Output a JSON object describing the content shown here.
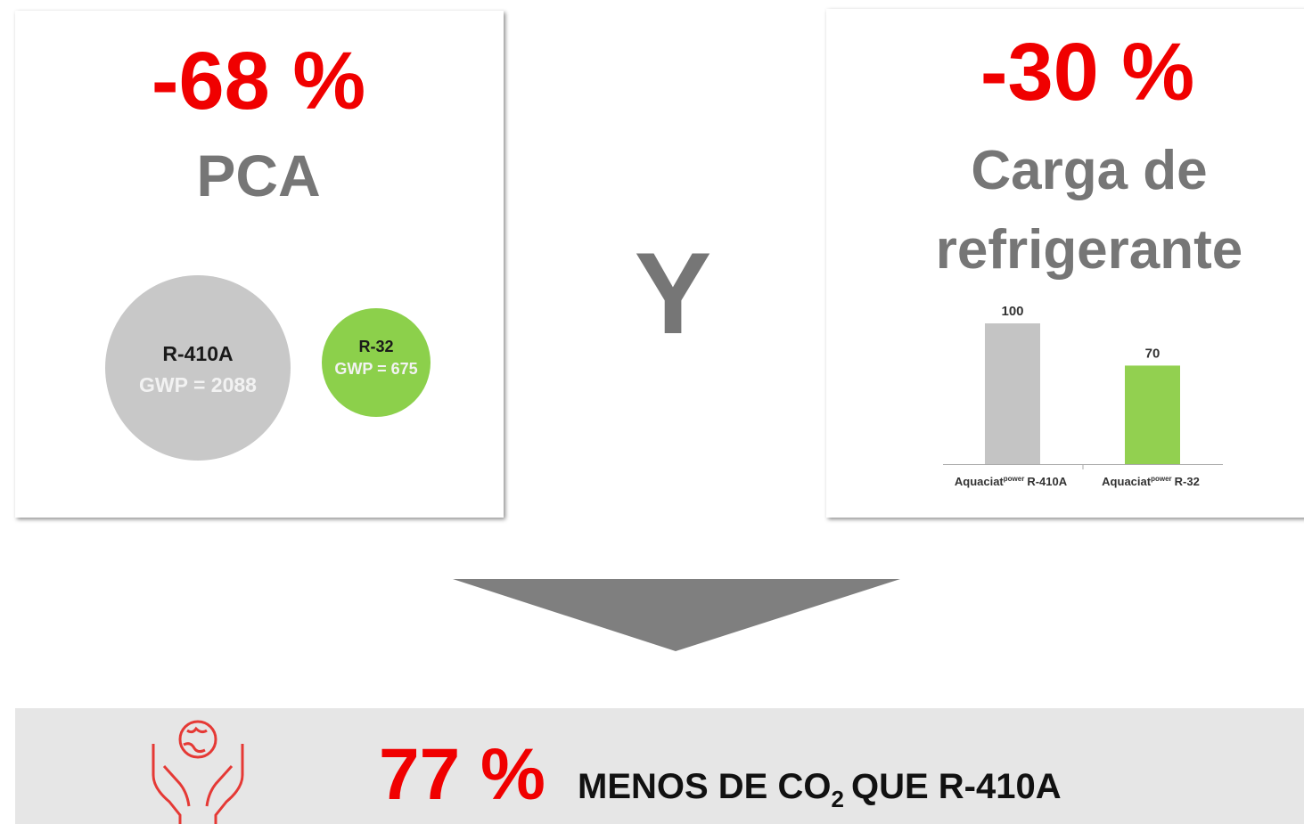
{
  "left_panel": {
    "percent": "-68 %",
    "title": "PCA",
    "circles": [
      {
        "name": "R-410A",
        "label": "GWP = 2088"
      },
      {
        "name": "R-32",
        "label": "GWP = 675"
      }
    ]
  },
  "connector": "Y",
  "right_panel": {
    "percent": "-30 %",
    "title_line1": "Carga de",
    "title_line2": "refrigerante",
    "bar_chart": {
      "categories": [
        [
          "Aquaciat",
          "power",
          "R-410A"
        ],
        [
          "Aquaciat",
          "power",
          "R-32"
        ]
      ],
      "values": [
        100,
        70
      ],
      "colors": [
        "#c4c4c4",
        "#92d050"
      ]
    }
  },
  "result": {
    "percent": "77 %",
    "text_before": "MENOS DE CO",
    "subscript": "2",
    "text_after": "QUE R-410A"
  }
}
